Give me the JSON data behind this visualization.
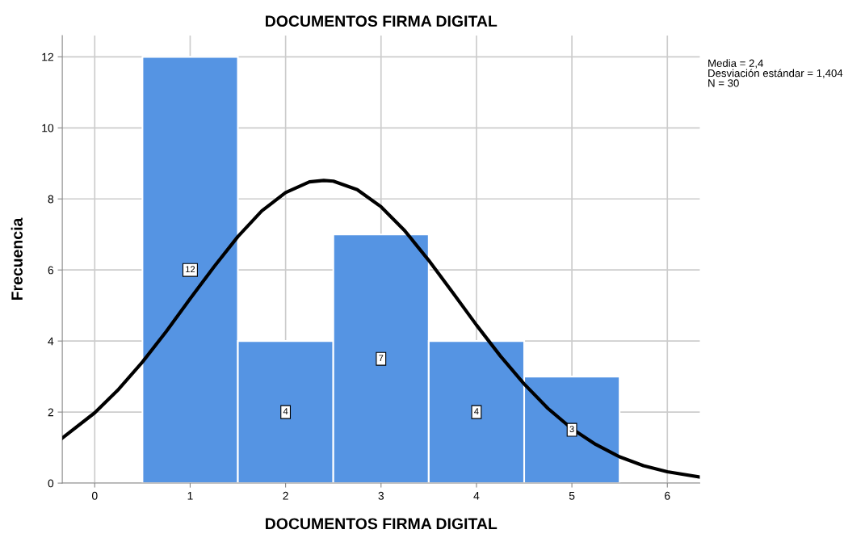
{
  "chart_data": {
    "type": "histogram",
    "title": "DOCUMENTOS FIRMA DIGITAL",
    "xlabel": "DOCUMENTOS FIRMA DIGITAL",
    "ylabel": "Frecuencia",
    "series": [
      {
        "bins": [
          0.5,
          1.5,
          2.5,
          3.5,
          4.5,
          5.5
        ],
        "values": [
          12,
          4,
          7,
          4,
          3
        ],
        "value_labels": [
          "12",
          "4",
          "7",
          "4",
          "3"
        ],
        "color": "#5594e3"
      },
      {
        "type": "line",
        "color": "#000000",
        "x": [
          -0.34,
          0,
          0.25,
          0.5,
          0.75,
          1.0,
          1.25,
          1.5,
          1.75,
          2.0,
          2.25,
          2.4,
          2.5,
          2.75,
          3.0,
          3.25,
          3.5,
          3.75,
          4.0,
          4.25,
          4.5,
          4.75,
          5.0,
          5.25,
          5.5,
          5.75,
          6.0,
          6.34
        ],
        "values": [
          1.27,
          1.98,
          2.64,
          3.41,
          4.27,
          5.19,
          6.09,
          6.94,
          7.66,
          8.18,
          8.48,
          8.52,
          8.5,
          8.26,
          7.78,
          7.1,
          6.27,
          5.37,
          4.45,
          3.58,
          2.79,
          2.1,
          1.53,
          1.09,
          0.74,
          0.49,
          0.32,
          0.17
        ]
      }
    ],
    "xlim": [
      -0.34,
      6.34
    ],
    "xticks": [
      0,
      1,
      2,
      3,
      4,
      5,
      6
    ],
    "ylim": [
      0,
      12.6
    ],
    "yticks": [
      0,
      2,
      4,
      6,
      8,
      10,
      12
    ],
    "grid": true,
    "annotations": [
      "Media = 2,4",
      "Desviación estándar = 1,404",
      "N = 30"
    ]
  }
}
